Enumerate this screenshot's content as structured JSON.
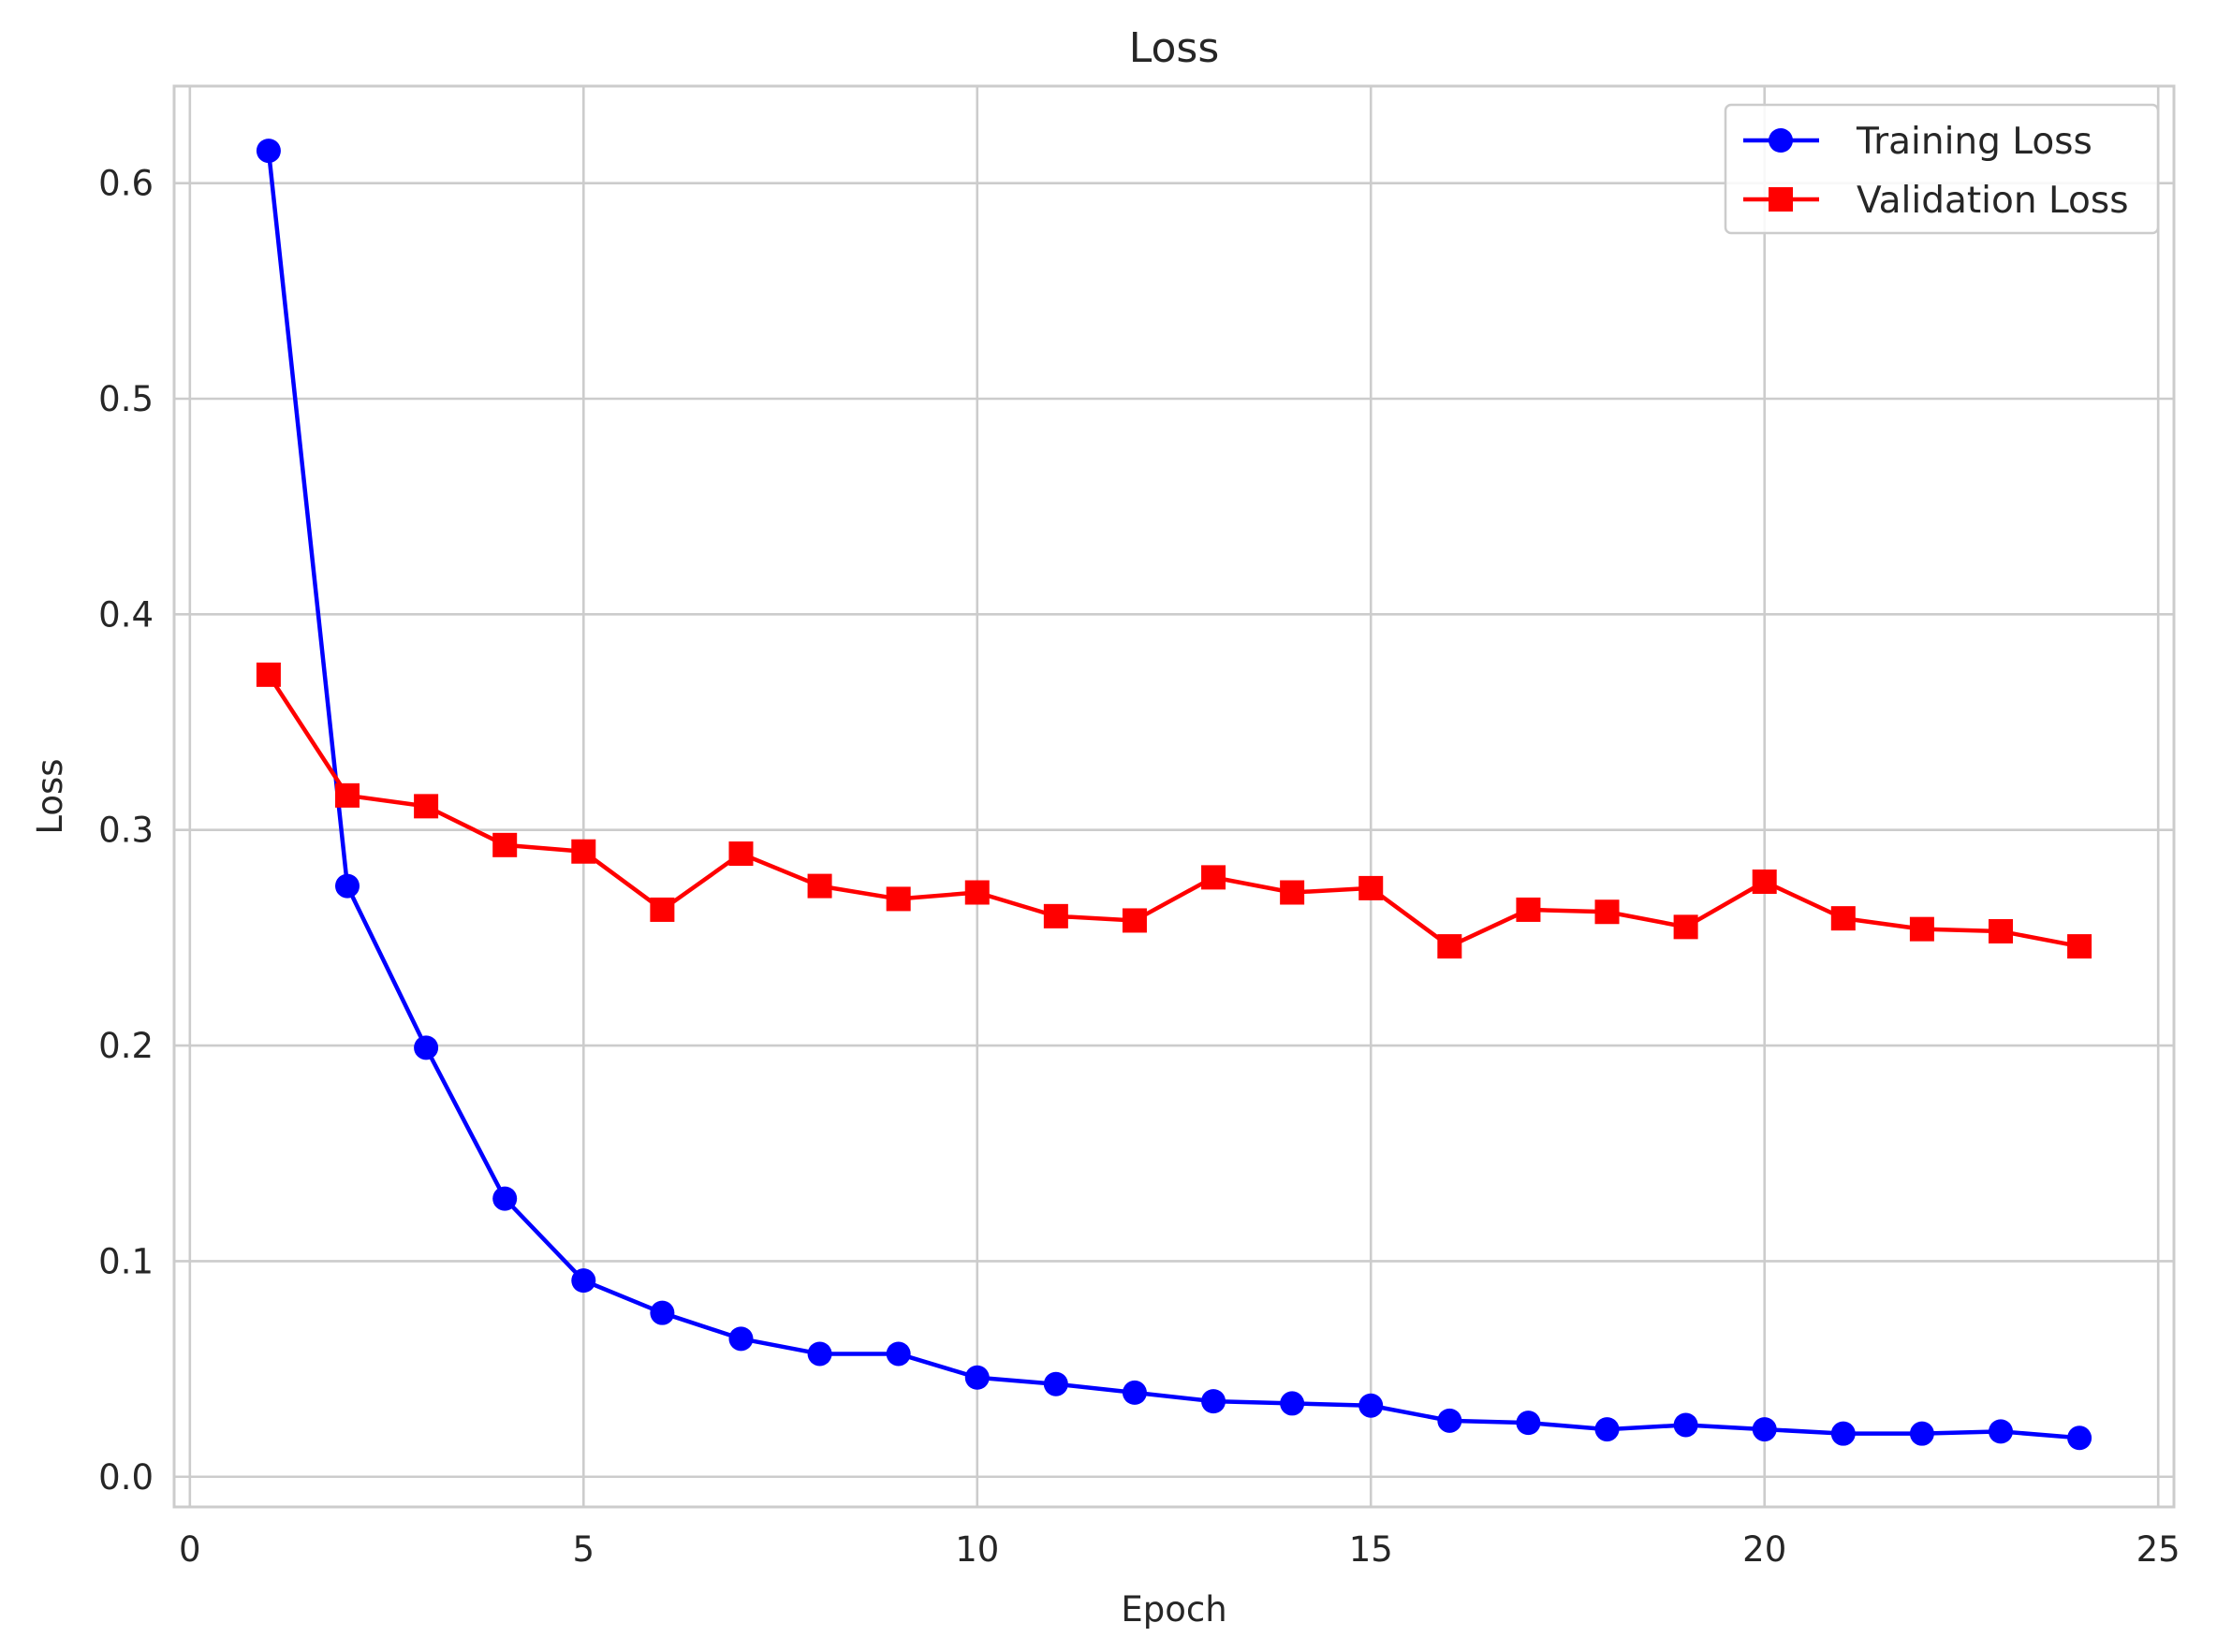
{
  "chart_data": {
    "type": "line",
    "title": "Loss",
    "xlabel": "Epoch",
    "ylabel": "Loss",
    "xlim": [
      -0.2,
      25.2
    ],
    "ylim": [
      -0.014,
      0.645
    ],
    "xticks": [
      0,
      5,
      10,
      15,
      20,
      25
    ],
    "yticks": [
      0.0,
      0.1,
      0.2,
      0.3,
      0.4,
      0.5,
      0.6
    ],
    "xtick_labels": [
      "0",
      "5",
      "10",
      "15",
      "20",
      "25"
    ],
    "ytick_labels": [
      "0.0",
      "0.1",
      "0.2",
      "0.3",
      "0.4",
      "0.5",
      "0.6"
    ],
    "grid": true,
    "legend_position": "top-right",
    "x": [
      1,
      2,
      3,
      4,
      5,
      6,
      7,
      8,
      9,
      10,
      11,
      12,
      13,
      14,
      15,
      16,
      17,
      18,
      19,
      20,
      21,
      22,
      23,
      24
    ],
    "series": [
      {
        "name": "Training Loss",
        "color": "#0000ff",
        "marker": "circle",
        "values": [
          0.615,
          0.274,
          0.199,
          0.129,
          0.091,
          0.076,
          0.064,
          0.057,
          0.057,
          0.046,
          0.043,
          0.039,
          0.035,
          0.034,
          0.033,
          0.026,
          0.025,
          0.022,
          0.024,
          0.022,
          0.02,
          0.02,
          0.021,
          0.018
        ]
      },
      {
        "name": "Validation Loss",
        "color": "#ff0000",
        "marker": "square",
        "values": [
          0.372,
          0.316,
          0.311,
          0.293,
          0.29,
          0.263,
          0.289,
          0.274,
          0.268,
          0.271,
          0.26,
          0.258,
          0.278,
          0.271,
          0.273,
          0.246,
          0.263,
          0.262,
          0.255,
          0.276,
          0.259,
          0.254,
          0.253,
          0.246
        ]
      }
    ]
  }
}
